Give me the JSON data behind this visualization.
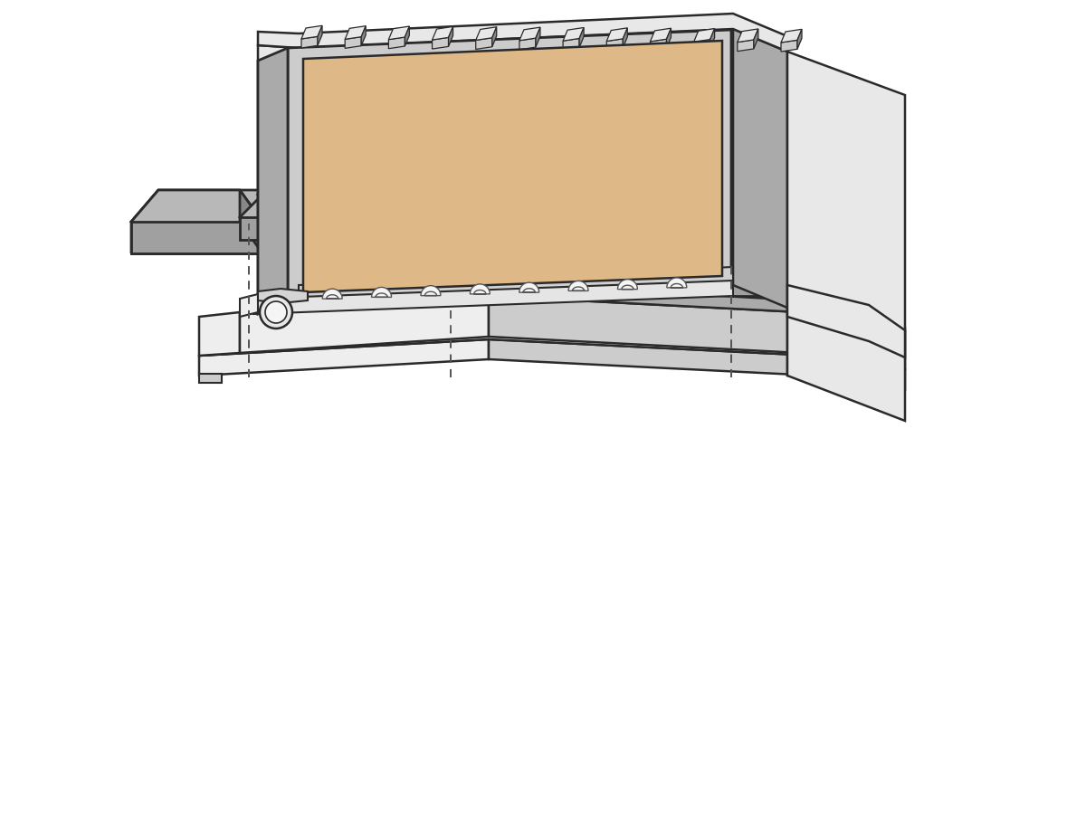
{
  "bg_color": "#ffffff",
  "outline_color": "#2a2a2a",
  "body_light": "#e8e8e8",
  "body_mid": "#cccccc",
  "body_dark": "#aaaaaa",
  "body_darkest": "#888888",
  "screen_fill": "#deb887",
  "white_fill": "#f5f5f5",
  "near_white": "#eeeeee",
  "dashed_color": "#555555",
  "pad_top": "#b8b8b8",
  "pad_front": "#a0a0a0",
  "pad_side": "#888888",
  "spring_fill": "#f0f0f0",
  "spring_edge": "#444444"
}
